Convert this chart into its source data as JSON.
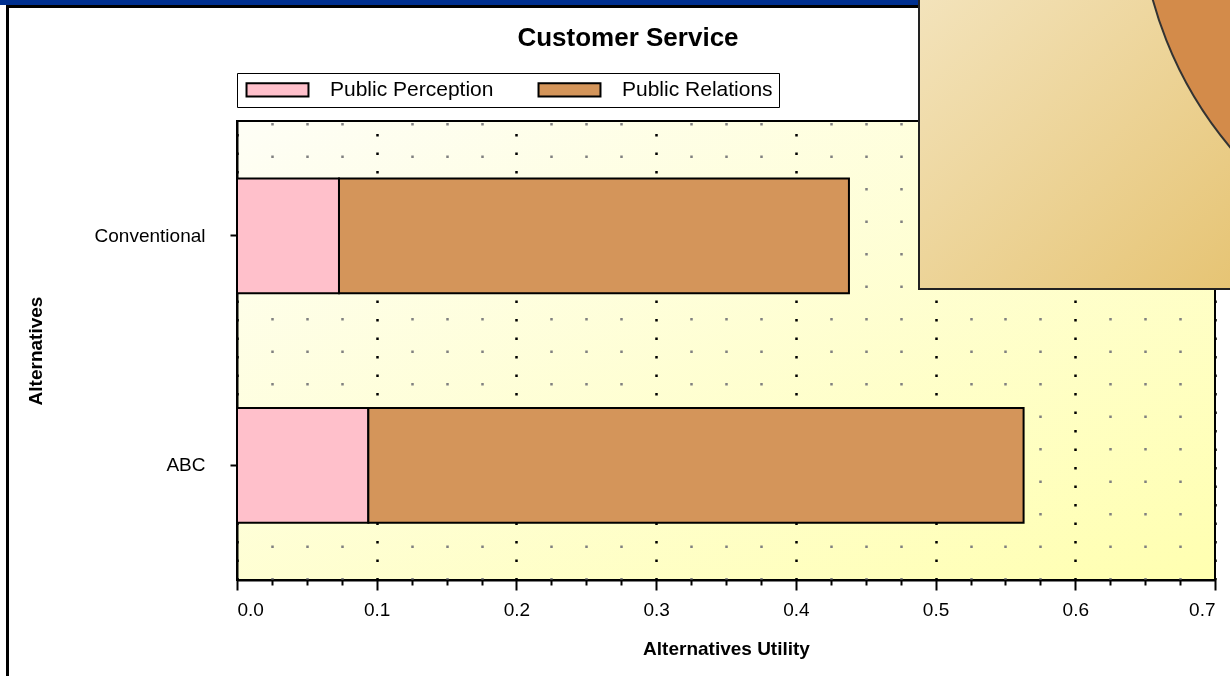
{
  "chart_data": {
    "type": "bar",
    "orientation": "horizontal",
    "stacked": true,
    "title": "Customer Service",
    "xlabel": "Alternatives Utility",
    "ylabel": "Alternatives",
    "categories": [
      "Conventional",
      "ABC"
    ],
    "series": [
      {
        "name": "Public Perception",
        "color": "#ffc0cb",
        "values": [
          0.073,
          0.094
        ]
      },
      {
        "name": "Public Relations",
        "color": "#d4955a",
        "values": [
          0.365,
          0.469
        ]
      }
    ],
    "xlim": [
      0,
      0.7
    ],
    "xticks": [
      {
        "value": 0,
        "label": "0.0"
      },
      {
        "value": 0.025,
        "label": null
      },
      {
        "value": 0.05,
        "label": null
      },
      {
        "value": 0.075,
        "label": null
      },
      0.1,
      {
        "value": 0.125,
        "label": null
      },
      {
        "value": 0.15,
        "label": null
      },
      {
        "value": 0.175,
        "label": null
      },
      0.2,
      {
        "value": 0.225,
        "label": null
      },
      {
        "value": 0.25,
        "label": null
      },
      {
        "value": 0.275,
        "label": null
      },
      0.3,
      {
        "value": 0.325,
        "label": null
      },
      {
        "value": 0.35,
        "label": null
      },
      {
        "value": 0.375,
        "label": null
      },
      0.4,
      {
        "value": 0.425,
        "label": null
      },
      {
        "value": 0.45,
        "label": null
      },
      {
        "value": 0.475,
        "label": null
      },
      0.5,
      {
        "value": 0.525,
        "label": null
      },
      {
        "value": 0.55,
        "label": null
      },
      {
        "value": 0.575,
        "label": null
      },
      0.6,
      {
        "value": 0.625,
        "label": null
      },
      {
        "value": 0.65,
        "label": null
      },
      {
        "value": 0.675,
        "label": null
      },
      0.7
    ],
    "grid": "x",
    "legend": "top"
  }
}
